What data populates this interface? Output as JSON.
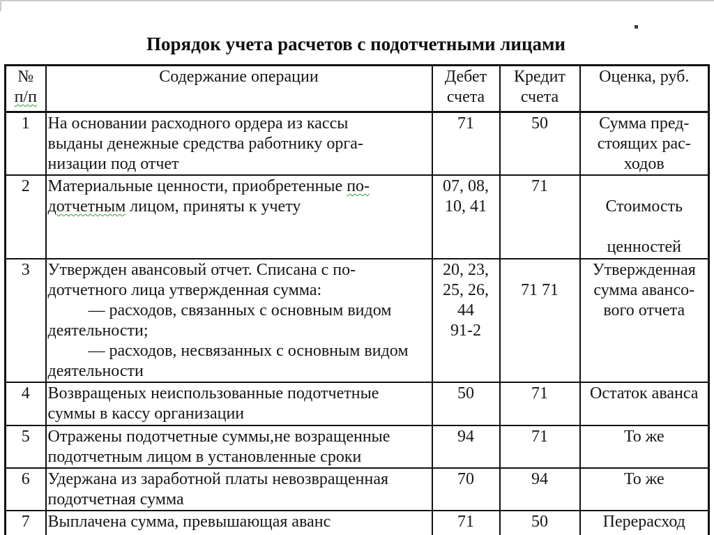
{
  "title": "Порядок учета расчетов с подотчетными лицами",
  "colors": {
    "text": "#161616",
    "table_border": "#111111",
    "spellcheck_underline": "#2f9e33",
    "page_edge": "#cdcdcd"
  },
  "table": {
    "headers": {
      "num": [
        {
          "segs": [
            {
              "t": "№"
            }
          ]
        },
        {
          "segs": [
            {
              "t": "п/п",
              "wavy": true
            }
          ]
        }
      ],
      "content": [
        {
          "segs": [
            {
              "t": "Содержание операции"
            }
          ]
        }
      ],
      "debit": [
        {
          "segs": [
            {
              "t": "Дебет"
            }
          ]
        },
        {
          "segs": [
            {
              "t": "счета"
            }
          ]
        }
      ],
      "credit": [
        {
          "segs": [
            {
              "t": "Кредит"
            }
          ]
        },
        {
          "segs": [
            {
              "t": "счета"
            }
          ]
        }
      ],
      "valuation": [
        {
          "segs": [
            {
              "t": "Оценка, руб."
            }
          ]
        }
      ]
    },
    "rows": [
      {
        "num": "1",
        "content": [
          {
            "segs": [
              {
                "t": "На основании расходного ордера из кассы"
              }
            ]
          },
          {
            "segs": [
              {
                "t": "выданы денежные средства работнику орга-"
              }
            ]
          },
          {
            "segs": [
              {
                "t": "низации под отчет"
              }
            ]
          }
        ],
        "debit": [
          {
            "segs": [
              {
                "t": "71"
              }
            ]
          }
        ],
        "credit": [
          {
            "segs": [
              {
                "t": "50"
              }
            ]
          }
        ],
        "valuation": [
          {
            "segs": [
              {
                "t": "Сумма пред-"
              }
            ]
          },
          {
            "segs": [
              {
                "t": "стоящих рас-"
              }
            ]
          },
          {
            "segs": [
              {
                "t": "ходов"
              }
            ]
          }
        ]
      },
      {
        "num": "2",
        "content": [
          {
            "segs": [
              {
                "t": "Материальные ценности, приобретенные "
              },
              {
                "t": "по-",
                "wavy": true
              }
            ]
          },
          {
            "segs": [
              {
                "t": "дотчетным",
                "wavy": true
              },
              {
                "t": " лицом, приняты к учету"
              }
            ]
          }
        ],
        "debit": [
          {
            "segs": [
              {
                "t": "07, 08,"
              }
            ]
          },
          {
            "segs": [
              {
                "t": "10, 41"
              }
            ]
          }
        ],
        "credit": [
          {
            "segs": [
              {
                "t": "71"
              }
            ]
          }
        ],
        "valuation": [
          {
            "segs": [
              {
                "t": ""
              }
            ]
          },
          {
            "segs": [
              {
                "t": "Стоимость"
              }
            ]
          },
          {
            "segs": [
              {
                "t": ""
              }
            ]
          },
          {
            "segs": [
              {
                "t": "ценностей"
              }
            ]
          }
        ]
      },
      {
        "num": "3",
        "content": [
          {
            "segs": [
              {
                "t": "Утвержден авансовый отчет. Списана с по-"
              }
            ]
          },
          {
            "segs": [
              {
                "t": "дотчетного лица утвержденная сумма:"
              }
            ]
          },
          {
            "indent": true,
            "segs": [
              {
                "t": "— расходов, связанных с основным видом"
              }
            ]
          },
          {
            "segs": [
              {
                "t": "деятельности;"
              }
            ]
          },
          {
            "indent": true,
            "segs": [
              {
                "t": "— расходов, несвязанных с основным видом"
              }
            ]
          },
          {
            "segs": [
              {
                "t": "деятельности"
              }
            ]
          }
        ],
        "debit": [
          {
            "segs": [
              {
                "t": "20, 23,"
              }
            ]
          },
          {
            "segs": [
              {
                "t": "25, 26,"
              }
            ]
          },
          {
            "segs": [
              {
                "t": "44"
              }
            ]
          },
          {
            "segs": [
              {
                "t": "91-2"
              }
            ]
          }
        ],
        "credit": [
          {
            "segs": [
              {
                "t": ""
              }
            ]
          },
          {
            "segs": [
              {
                "t": "71 71"
              }
            ]
          }
        ],
        "valuation": [
          {
            "segs": [
              {
                "t": "Утвержденная"
              }
            ]
          },
          {
            "segs": [
              {
                "t": "сумма авансо-"
              }
            ]
          },
          {
            "segs": [
              {
                "t": "вого отчета"
              }
            ]
          }
        ]
      },
      {
        "num": "4",
        "content": [
          {
            "segs": [
              {
                "t": "Возвращеных неиспользованные подотчетные"
              }
            ]
          },
          {
            "segs": [
              {
                "t": "суммы в кассу организации"
              }
            ]
          }
        ],
        "debit": [
          {
            "segs": [
              {
                "t": "50"
              }
            ]
          }
        ],
        "credit": [
          {
            "segs": [
              {
                "t": "71"
              }
            ]
          }
        ],
        "valuation": [
          {
            "segs": [
              {
                "t": "Остаток аванса"
              }
            ]
          }
        ]
      },
      {
        "num": "5",
        "content": [
          {
            "segs": [
              {
                "t": "Отражены подотчетные суммы,не возращенные"
              }
            ]
          },
          {
            "segs": [
              {
                "t": "подотчетным лицом в установленные сроки"
              }
            ]
          }
        ],
        "debit": [
          {
            "segs": [
              {
                "t": "94"
              }
            ]
          }
        ],
        "credit": [
          {
            "segs": [
              {
                "t": "71"
              }
            ]
          }
        ],
        "valuation": [
          {
            "segs": [
              {
                "t": "То же"
              }
            ]
          }
        ]
      },
      {
        "num": "6",
        "content": [
          {
            "segs": [
              {
                "t": "Удержана из заработной платы невозвращенная"
              }
            ]
          },
          {
            "segs": [
              {
                "t": "подотчетная сумма"
              }
            ]
          }
        ],
        "debit": [
          {
            "segs": [
              {
                "t": "70"
              }
            ]
          }
        ],
        "credit": [
          {
            "segs": [
              {
                "t": "94"
              }
            ]
          }
        ],
        "valuation": [
          {
            "segs": [
              {
                "t": "То же"
              }
            ]
          }
        ]
      },
      {
        "num": "7",
        "content": [
          {
            "segs": [
              {
                "t": "Выплачена сумма, превышающая аванс"
              }
            ]
          }
        ],
        "debit": [
          {
            "segs": [
              {
                "t": "71"
              }
            ]
          }
        ],
        "credit": [
          {
            "segs": [
              {
                "t": "50"
              }
            ]
          }
        ],
        "valuation": [
          {
            "segs": [
              {
                "t": "Перерасход"
              }
            ]
          }
        ]
      }
    ]
  }
}
